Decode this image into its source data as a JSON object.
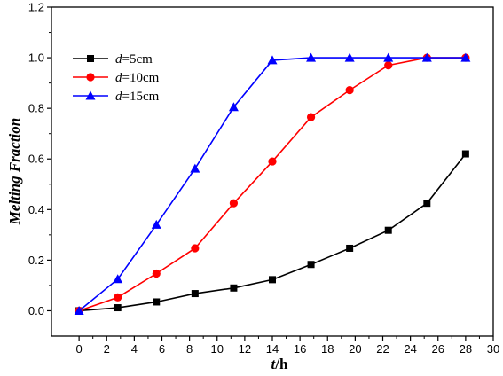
{
  "chart_data": {
    "type": "line",
    "xlabel": {
      "var": "t",
      "unit": "/h"
    },
    "ylabel": "Melting Fraction",
    "xlim": [
      -2,
      30
    ],
    "ylim": [
      -0.1,
      1.2
    ],
    "xticks": [
      0,
      2,
      4,
      6,
      8,
      10,
      12,
      14,
      16,
      18,
      20,
      22,
      24,
      26,
      28,
      30
    ],
    "yticks": [
      0.0,
      0.2,
      0.4,
      0.6,
      0.8,
      1.0,
      1.2
    ],
    "ytick_labels": [
      "0.0",
      "0.2",
      "0.4",
      "0.6",
      "0.8",
      "1.0",
      "1.2"
    ],
    "grid": false,
    "legend_position": "top-left",
    "series": [
      {
        "name": "d=5cm",
        "legend_var": "d",
        "legend_rest": "=5cm",
        "color": "#000000",
        "marker": "square",
        "x": [
          0,
          2.8,
          5.6,
          8.4,
          11.2,
          14,
          16.8,
          19.6,
          22.4,
          25.2,
          28
        ],
        "y": [
          0.0,
          0.012,
          0.035,
          0.068,
          0.09,
          0.123,
          0.183,
          0.247,
          0.318,
          0.425,
          0.62
        ]
      },
      {
        "name": "d=10cm",
        "legend_var": "d",
        "legend_rest": "=10cm",
        "color": "#ff0000",
        "marker": "circle",
        "x": [
          0,
          2.8,
          5.6,
          8.4,
          11.2,
          14,
          16.8,
          19.6,
          22.4,
          25.2,
          28
        ],
        "y": [
          0.0,
          0.053,
          0.147,
          0.247,
          0.425,
          0.59,
          0.765,
          0.872,
          0.97,
          1.0,
          1.0
        ]
      },
      {
        "name": "d=15cm",
        "legend_var": "d",
        "legend_rest": "=15cm",
        "color": "#0000ff",
        "marker": "triangle",
        "x": [
          0,
          2.8,
          5.6,
          8.4,
          11.2,
          14,
          16.8,
          19.6,
          22.4,
          25.2,
          28
        ],
        "y": [
          0.0,
          0.125,
          0.34,
          0.562,
          0.805,
          0.99,
          1.0,
          1.0,
          1.0,
          1.0,
          1.0
        ]
      }
    ]
  }
}
